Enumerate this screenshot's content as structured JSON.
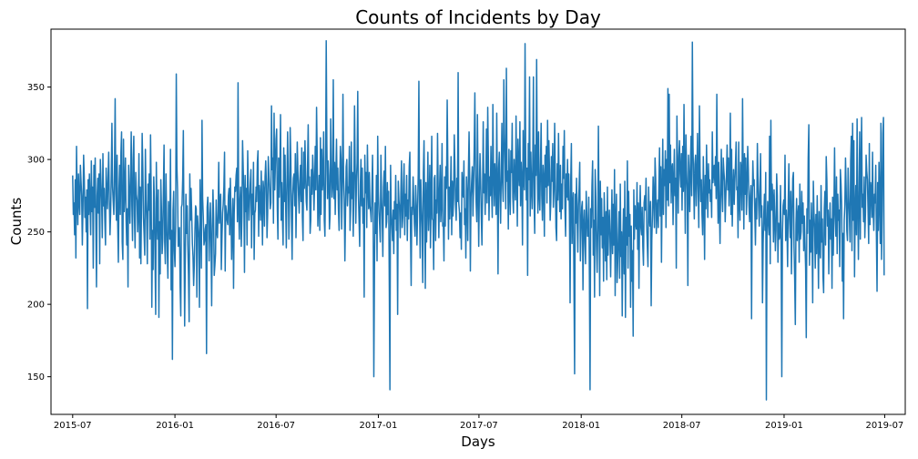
{
  "chart_data": {
    "type": "line",
    "title": "Counts of Incidents by Day",
    "xlabel": "Days",
    "ylabel": "Counts",
    "x_range": [
      "2015-07-01",
      "2019-06-30"
    ],
    "xlim": [
      "2015-05-23",
      "2019-08-07"
    ],
    "ylim": [
      124,
      390
    ],
    "x_ticks": [
      "2015-07",
      "2016-01",
      "2016-07",
      "2017-01",
      "2017-07",
      "2018-01",
      "2018-07",
      "2019-01",
      "2019-07"
    ],
    "y_ticks": [
      150,
      200,
      250,
      300,
      350
    ],
    "grid": false,
    "legend": "none",
    "series": [
      {
        "color": "#1f77b4",
        "values": [
          289,
          262,
          270,
          248,
          286,
          232,
          309,
          275,
          255,
          290,
          271,
          262,
          296,
          285,
          275,
          241,
          267,
          303,
          288,
          260,
          274,
          250,
          279,
          197,
          286,
          262,
          290,
          270,
          248,
          299,
          264,
          281,
          225,
          296,
          267,
          301,
          257,
          212,
          275,
          287,
          263,
          290,
          228,
          300,
          285,
          272,
          246,
          304,
          268,
          280,
          258,
          241,
          294,
          279,
          266,
          287,
          305,
          272,
          248,
          263,
          290,
          325,
          281,
          271,
          262,
          293,
          342,
          276,
          258,
          303,
          255,
          229,
          280,
          296,
          262,
          305,
          319,
          243,
          231,
          314,
          264,
          279,
          301,
          259,
          241,
          266,
          212,
          296,
          276,
          256,
          286,
          319,
          268,
          244,
          300,
          316,
          261,
          239,
          291,
          276,
          272,
          250,
          263,
          304,
          232,
          281,
          228,
          269,
          318,
          294,
          260,
          248,
          234,
          307,
          272,
          258,
          228,
          283,
          265,
          290,
          245,
          317,
          278,
          198,
          251,
          224,
          288,
          270,
          231,
          193,
          298,
          263,
          245,
          279,
          191,
          257,
          221,
          286,
          265,
          235,
          245,
          279,
          310,
          243,
          228,
          290,
          258,
          236,
          218,
          271,
          260,
          245,
          307,
          210,
          251,
          162,
          265,
          278,
          237,
          226,
          255,
          359,
          295,
          279,
          240,
          246,
          253,
          212,
          192,
          267,
          269,
          287,
          320,
          247,
          185,
          231,
          276,
          249,
          268,
          241,
          220,
          188,
          290,
          258,
          280,
          262,
          242,
          233,
          213,
          227,
          251,
          268,
          266,
          205,
          261,
          253,
          246,
          198,
          286,
          257,
          225,
          327,
          273,
          260,
          241,
          244,
          252,
          255,
          166,
          267,
          274,
          263,
          230,
          251,
          270,
          243,
          199,
          253,
          279,
          261,
          220,
          227,
          235,
          272,
          250,
          246,
          264,
          298,
          256,
          270,
          276,
          224,
          246,
          263,
          269,
          281,
          305,
          223,
          268,
          263,
          258,
          255,
          275,
          280,
          248,
          287,
          265,
          231,
          252,
          273,
          211,
          262,
          281,
          278,
          289,
          294,
          257,
          353,
          266,
          245,
          272,
          281,
          240,
          260,
          313,
          294,
          276,
          222,
          289,
          264,
          280,
          241,
          306,
          279,
          258,
          271,
          284,
          293,
          239,
          276,
          262,
          298,
          231,
          263,
          265,
          281,
          271,
          298,
          306,
          247,
          282,
          272,
          258,
          292,
          270,
          241,
          285,
          278,
          254,
          288,
          299,
          283,
          246,
          263,
          302,
          289,
          279,
          266,
          270,
          337,
          293,
          301,
          256,
          332,
          279,
          296,
          314,
          321,
          266,
          245,
          301,
          274,
          293,
          331,
          258,
          284,
          260,
          241,
          308,
          271,
          303,
          268,
          239,
          282,
          319,
          286,
          245,
          272,
          322,
          300,
          259,
          231,
          275,
          287,
          290,
          268,
          304,
          246,
          279,
          312,
          292,
          275,
          263,
          285,
          296,
          271,
          308,
          260,
          244,
          305,
          280,
          313,
          289,
          271,
          265,
          296,
          324,
          282,
          288,
          249,
          258,
          293,
          276,
          303,
          290,
          265,
          283,
          309,
          279,
          336,
          303,
          254,
          271,
          289,
          251,
          315,
          262,
          307,
          279,
          286,
          319,
          258,
          247,
          291,
          382,
          311,
          273,
          299,
          289,
          252,
          262,
          328,
          294,
          274,
          282,
          355,
          273,
          298,
          262,
          291,
          314,
          279,
          294,
          266,
          251,
          283,
          309,
          300,
          252,
          279,
          345,
          288,
          273,
          230,
          262,
          295,
          300,
          268,
          281,
          277,
          309,
          251,
          266,
          312,
          273,
          291,
          247,
          281,
          337,
          296,
          256,
          285,
          298,
          347,
          276,
          259,
          240,
          282,
          300,
          268,
          294,
          256,
          273,
          205,
          303,
          277,
          291,
          253,
          310,
          282,
          266,
          291,
          268,
          264,
          257,
          278,
          303,
          261,
          150,
          225,
          270,
          249,
          289,
          230,
          316,
          278,
          264,
          255,
          243,
          303,
          274,
          260,
          233,
          281,
          292,
          268,
          309,
          253,
          257,
          284,
          262,
          278,
          215,
          141,
          296,
          264,
          254,
          244,
          265,
          235,
          271,
          259,
          289,
          251,
          269,
          193,
          285,
          272,
          266,
          246,
          277,
          299,
          253,
          260,
          282,
          297,
          248,
          276,
          261,
          289,
          244,
          272,
          259,
          295,
          305,
          250,
          213,
          267,
          262,
          288,
          272,
          256,
          247,
          282,
          268,
          241,
          264,
          290,
          354,
          271,
          232,
          286,
          269,
          253,
          215,
          291,
          313,
          265,
          211,
          284,
          243,
          269,
          305,
          251,
          270,
          296,
          239,
          268,
          316,
          259,
          258,
          224,
          287,
          289,
          244,
          272,
          263,
          318,
          281,
          246,
          277,
          296,
          257,
          269,
          311,
          254,
          256,
          230,
          288,
          254,
          295,
          280,
          341,
          297,
          245,
          281,
          259,
          276,
          302,
          248,
          285,
          261,
          273,
          317,
          295,
          269,
          258,
          287,
          271,
          360,
          270,
          264,
          246,
          263,
          238,
          291,
          281,
          274,
          299,
          255,
          266,
          232,
          288,
          274,
          244,
          292,
          319,
          286,
          223,
          274,
          285,
          295,
          261,
          281,
          309,
          346,
          292,
          270,
          257,
          331,
          280,
          240,
          278,
          304,
          285,
          261,
          241,
          278,
          326,
          277,
          290,
          262,
          284,
          321,
          270,
          336,
          301,
          258,
          288,
          275,
          309,
          279,
          260,
          338,
          292,
          268,
          297,
          285,
          262,
          332,
          281,
          221,
          294,
          305,
          276,
          256,
          289,
          325,
          284,
          271,
          355,
          318,
          297,
          266,
          363,
          285,
          292,
          252,
          307,
          279,
          262,
          306,
          291,
          325,
          274,
          263,
          300,
          284,
          272,
          330,
          289,
          254,
          314,
          293,
          282,
          326,
          268,
          298,
          285,
          241,
          320,
          286,
          279,
          380,
          302,
          272,
          294,
          220,
          311,
          286,
          357,
          261,
          305,
          282,
          266,
          298,
          357,
          272,
          249,
          310,
          289,
          369,
          299,
          263,
          319,
          276,
          265,
          295,
          325,
          275,
          258,
          296,
          287,
          247,
          303,
          281,
          309,
          270,
          327,
          282,
          313,
          293,
          258,
          270,
          302,
          285,
          311,
          267,
          279,
          325,
          287,
          253,
          244,
          297,
          272,
          318,
          284,
          264,
          296,
          259,
          283,
          266,
          309,
          287,
          320,
          266,
          247,
          290,
          274,
          300,
          272,
          290,
          262,
          201,
          285,
          311,
          242,
          266,
          277,
          214,
          152,
          276,
          256,
          287,
          259,
          236,
          268,
          281,
          298,
          230,
          250,
          267,
          271,
          210,
          255,
          265,
          243,
          228,
          278,
          262,
          247,
          247,
          274,
          220,
          141,
          266,
          253,
          282,
          299,
          234,
          258,
          205,
          293,
          274,
          240,
          222,
          251,
          323,
          262,
          206,
          285,
          248,
          273,
          239,
          260,
          216,
          277,
          256,
          230,
          264,
          217,
          281,
          234,
          255,
          265,
          245,
          219,
          252,
          279,
          235,
          269,
          241,
          293,
          206,
          257,
          276,
          215,
          229,
          248,
          264,
          218,
          283,
          233,
          250,
          192,
          243,
          266,
          221,
          285,
          191,
          260,
          241,
          299,
          225,
          278,
          247,
          262,
          198,
          254,
          216,
          237,
          178,
          279,
          245,
          268,
          256,
          252,
          284,
          238,
          270,
          211,
          263,
          282,
          253,
          248,
          267,
          240,
          227,
          270,
          275,
          265,
          287,
          255,
          240,
          226,
          281,
          262,
          254,
          271,
          199,
          245,
          262,
          288,
          273,
          253,
          301,
          287,
          249,
          266,
          272,
          253,
          283,
          308,
          261,
          295,
          229,
          277,
          314,
          262,
          293,
          282,
          306,
          253,
          300,
          272,
          349,
          268,
          345,
          284,
          310,
          270,
          294,
          297,
          255,
          284,
          307,
          275,
          287,
          225,
          330,
          294,
          263,
          302,
          313,
          290,
          281,
          304,
          265,
          309,
          278,
          338,
          291,
          249,
          317,
          292,
          279,
          213,
          303,
          288,
          264,
          296,
          316,
          275,
          381,
          309,
          283,
          259,
          297,
          303,
          268,
          287,
          318,
          281,
          253,
          337,
          292,
          271,
          286,
          262,
          248,
          302,
          274,
          231,
          289,
          266,
          310,
          285,
          260,
          297,
          277,
          286,
          271,
          279,
          260,
          319,
          284,
          291,
          296,
          282,
          302,
          273,
          345,
          286,
          256,
          298,
          266,
          242,
          281,
          307,
          276,
          264,
          301,
          292,
          285,
          257,
          274,
          290,
          310,
          279,
          301,
          268,
          286,
          332,
          262,
          307,
          254,
          278,
          293,
          269,
          284,
          297,
          312,
          279,
          281,
          246,
          312,
          271,
          258,
          298,
          291,
          265,
          342,
          288,
          252,
          304,
          276,
          301,
          262,
          280,
          309,
          293,
          268,
          257,
          275,
          282,
          190,
          266,
          299,
          282,
          286,
          264,
          241,
          273,
          259,
          311,
          287,
          268,
          254,
          279,
          304,
          260,
          268,
          201,
          242,
          262,
          276,
          251,
          291,
          134,
          253,
          271,
          256,
          248,
          316,
          228,
          327,
          265,
          283,
          273,
          243,
          279,
          260,
          237,
          251,
          290,
          275,
          229,
          256,
          245,
          247,
          282,
          234,
          150,
          249,
          268,
          272,
          262,
          303,
          244,
          265,
          254,
          226,
          271,
          297,
          259,
          246,
          278,
          221,
          258,
          287,
          291,
          240,
          218,
          186,
          255,
          273,
          244,
          261,
          268,
          229,
          283,
          245,
          250,
          278,
          256,
          270,
          237,
          261,
          243,
          225,
          177,
          266,
          249,
          301,
          324,
          227,
          258,
          236,
          270,
          248,
          201,
          285,
          263,
          252,
          225,
          262,
          235,
          275,
          248,
          211,
          264,
          239,
          232,
          282,
          243,
          259,
          219,
          208,
          266,
          278,
          241,
          302,
          286,
          254,
          265,
          221,
          255,
          270,
          245,
          259,
          211,
          274,
          234,
          267,
          308,
          261,
          247,
          288,
          235,
          276,
          258,
          265,
          226,
          293,
          283,
          268,
          216,
          249,
          190,
          258,
          269,
          301,
          280,
          251,
          244,
          294,
          274,
          261,
          243,
          299,
          316,
          237,
          325,
          258,
          313,
          219,
          263,
          282,
          248,
          328,
          269,
          231,
          273,
          319,
          245,
          292,
          329,
          267,
          276,
          257,
          288,
          246,
          263,
          303,
          292,
          286,
          266,
          242,
          311,
          255,
          284,
          279,
          260,
          305,
          264,
          251,
          276,
          270,
          296,
          248,
          209,
          284,
          251,
          298,
          273,
          242,
          325,
          231,
          266,
          318,
          329,
          220
        ]
      }
    ]
  }
}
